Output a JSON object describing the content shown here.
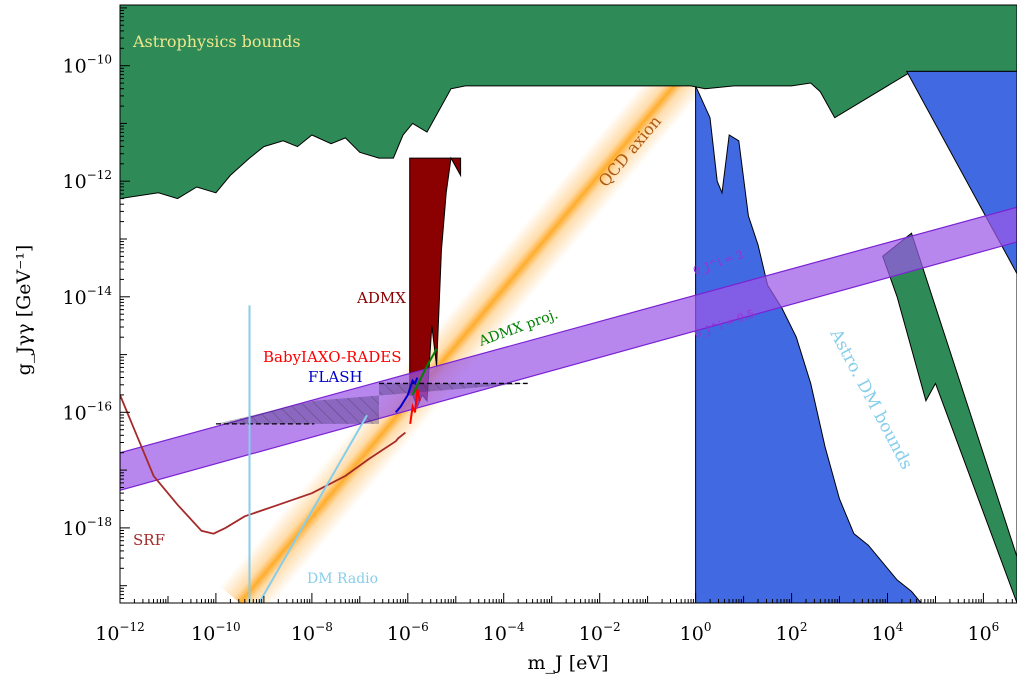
{
  "colors": {
    "astro": "#2e8b57",
    "admx": "#8b0000",
    "astro_dm": "#4169e1",
    "band": "#9b59e6",
    "band_edge": "#7a22d4",
    "qcd": "#ffb347",
    "srf": "#a52a2a",
    "dm_radio": "#87ceeb",
    "flash": "#0000cd",
    "baby": "#ff0000",
    "admx_proj": "#008000",
    "astro_text": "#f0e68c"
  },
  "chart_data": {
    "type": "area",
    "xscale": "log",
    "yscale": "log",
    "xlim_exp": [
      -12,
      6.7
    ],
    "ylim_exp": [
      -19.3,
      -8.95
    ],
    "x_ticks": [
      {
        "base": "10",
        "exp": "−12",
        "v": -12
      },
      {
        "base": "10",
        "exp": "−10",
        "v": -10
      },
      {
        "base": "10",
        "exp": "−8",
        "v": -8
      },
      {
        "base": "10",
        "exp": "−6",
        "v": -6
      },
      {
        "base": "10",
        "exp": "−4",
        "v": -4
      },
      {
        "base": "10",
        "exp": "−2",
        "v": -2
      },
      {
        "base": "10",
        "exp": "0",
        "v": 0
      },
      {
        "base": "10",
        "exp": "2",
        "v": 2
      },
      {
        "base": "10",
        "exp": "4",
        "v": 4
      },
      {
        "base": "10",
        "exp": "6",
        "v": 6
      }
    ],
    "y_ticks": [
      {
        "base": "10",
        "exp": "−10",
        "v": -10
      },
      {
        "base": "10",
        "exp": "−12",
        "v": -12
      },
      {
        "base": "10",
        "exp": "−14",
        "v": -14
      },
      {
        "base": "10",
        "exp": "−16",
        "v": -16
      },
      {
        "base": "10",
        "exp": "−18",
        "v": -18
      }
    ],
    "xlabel": "m_J [eV]",
    "ylabel": "g_Jγγ [GeV⁻¹]",
    "annotations": {
      "astro": "Astrophysics bounds",
      "admx": "ADMX",
      "qcd": "QCD axion",
      "admx_proj": "ADMX proj.",
      "baby": "BabyIAXO-RADES",
      "flash": "FLASH",
      "srf": "SRF",
      "dm_radio": "DM Radio",
      "astro_dm": "Astro. DM bounds",
      "theta_2": "θ_J^i = 2",
      "theta_05": "θ_J^i = 0.5"
    },
    "series": [
      {
        "name": "Astrophysics bounds",
        "kind": "fill-above",
        "x": [
          -12,
          -11.2,
          -10.8,
          -10.4,
          -10.0,
          -9.7,
          -9.3,
          -9.0,
          -8.6,
          -8.3,
          -8.0,
          -7.6,
          -7.3,
          -7.0,
          -6.6,
          -6.3,
          -6.1,
          -5.9,
          -5.6,
          -5.3,
          -5.1,
          -4.8,
          -4.5,
          -4.0,
          -3.0,
          -2.0,
          -1.0,
          -0.1,
          0.2,
          0.8,
          1.0,
          1.5,
          2.0,
          2.4,
          2.6,
          2.9,
          4.5,
          6.7
        ],
        "y": [
          -12.3,
          -12.2,
          -12.3,
          -12.1,
          -12.2,
          -11.9,
          -11.6,
          -11.4,
          -11.3,
          -11.4,
          -11.2,
          -11.35,
          -11.25,
          -11.5,
          -11.6,
          -11.6,
          -11.2,
          -11.0,
          -11.15,
          -10.7,
          -10.4,
          -10.35,
          -10.35,
          -10.35,
          -10.35,
          -10.35,
          -10.35,
          -10.35,
          -10.4,
          -10.35,
          -10.35,
          -10.35,
          -10.35,
          -10.3,
          -10.45,
          -10.9,
          -10.1,
          -10.1
        ]
      },
      {
        "name": "ADMX",
        "kind": "dips",
        "x": [
          -5.96,
          -5.9,
          -5.8,
          -5.7,
          -5.6,
          -5.5,
          -5.4,
          -5.3,
          -5.2,
          -5.1,
          -4.9
        ],
        "y": [
          -15.7,
          -15.7,
          -15.9,
          -15.7,
          -15.8,
          -14.5,
          -15.2,
          -13.2,
          -12.2,
          -11.6,
          -11.9
        ]
      },
      {
        "name": "Astro. DM bounds",
        "kind": "fill-below",
        "x": [
          0.0,
          0.3,
          0.45,
          0.55,
          0.7,
          0.9,
          1.1,
          1.3,
          1.5,
          1.8,
          2.1,
          2.4,
          2.7,
          3.0,
          3.3,
          3.6,
          3.9,
          4.2,
          4.5,
          4.7,
          6.7
        ],
        "y": [
          -10.35,
          -10.9,
          -12.0,
          -12.2,
          -11.2,
          -11.3,
          -12.6,
          -13.1,
          -13.8,
          -14.2,
          -14.7,
          -15.5,
          -16.6,
          -17.5,
          -18.1,
          -18.3,
          -18.6,
          -18.9,
          -19.1,
          -19.3,
          -19.3
        ]
      },
      {
        "name": "θ band",
        "kind": "band",
        "upper": [
          [
            -12,
            -16.7
          ],
          [
            6.7,
            -12.45
          ]
        ],
        "lower": [
          [
            -12,
            -17.35
          ],
          [
            6.7,
            -13.05
          ]
        ]
      },
      {
        "name": "QCD axion",
        "kind": "line",
        "x": [
          -9.5,
          1.0
        ],
        "y": [
          -19.3,
          -8.95
        ]
      },
      {
        "name": "SRF",
        "kind": "line",
        "x": [
          -12,
          -11.7,
          -11.3,
          -10.8,
          -10.3,
          -10.05,
          -9.8,
          -9.4,
          -8.7,
          -8.0,
          -7.3,
          -6.8,
          -6.25,
          -6.2,
          -6.05
        ],
        "y": [
          -15.7,
          -16.3,
          -17.1,
          -17.6,
          -18.05,
          -18.1,
          -18.0,
          -17.8,
          -17.6,
          -17.4,
          -17.1,
          -16.8,
          -16.5,
          -16.45,
          -16.35
        ]
      },
      {
        "name": "DM Radio",
        "kind": "line",
        "x": [
          -9.1,
          -6.85
        ],
        "y": [
          -19.3,
          -16.05
        ]
      },
      {
        "name": "ABRACADABRA",
        "kind": "line",
        "x": [
          -9.3,
          -9.3
        ],
        "y": [
          -19.3,
          -14.15
        ]
      },
      {
        "name": "FLASH",
        "kind": "line",
        "x": [
          -6.25,
          -6.15,
          -6.0,
          -5.9,
          -5.85,
          -5.8
        ],
        "y": [
          -16.0,
          -15.9,
          -15.7,
          -15.45,
          -15.5,
          -15.4
        ]
      },
      {
        "name": "BabyIAXO-RADES",
        "kind": "line",
        "x": [
          -5.95,
          -5.9,
          -5.85,
          -5.8,
          -5.75
        ],
        "y": [
          -16.2,
          -15.9,
          -16.0,
          -15.6,
          -15.8
        ]
      },
      {
        "name": "ADMX proj.",
        "kind": "line",
        "x": [
          -5.9,
          -5.6,
          -5.4
        ],
        "y": [
          -15.7,
          -15.2,
          -14.9
        ]
      },
      {
        "name": "projection region",
        "kind": "hatched",
        "x": [
          -10.0,
          -6.6,
          -6.6,
          -3.5,
          -7.95,
          -10.0
        ],
        "y": [
          -16.2,
          -16.2,
          -15.5,
          -15.5,
          -15.8,
          -16.2
        ]
      }
    ]
  }
}
